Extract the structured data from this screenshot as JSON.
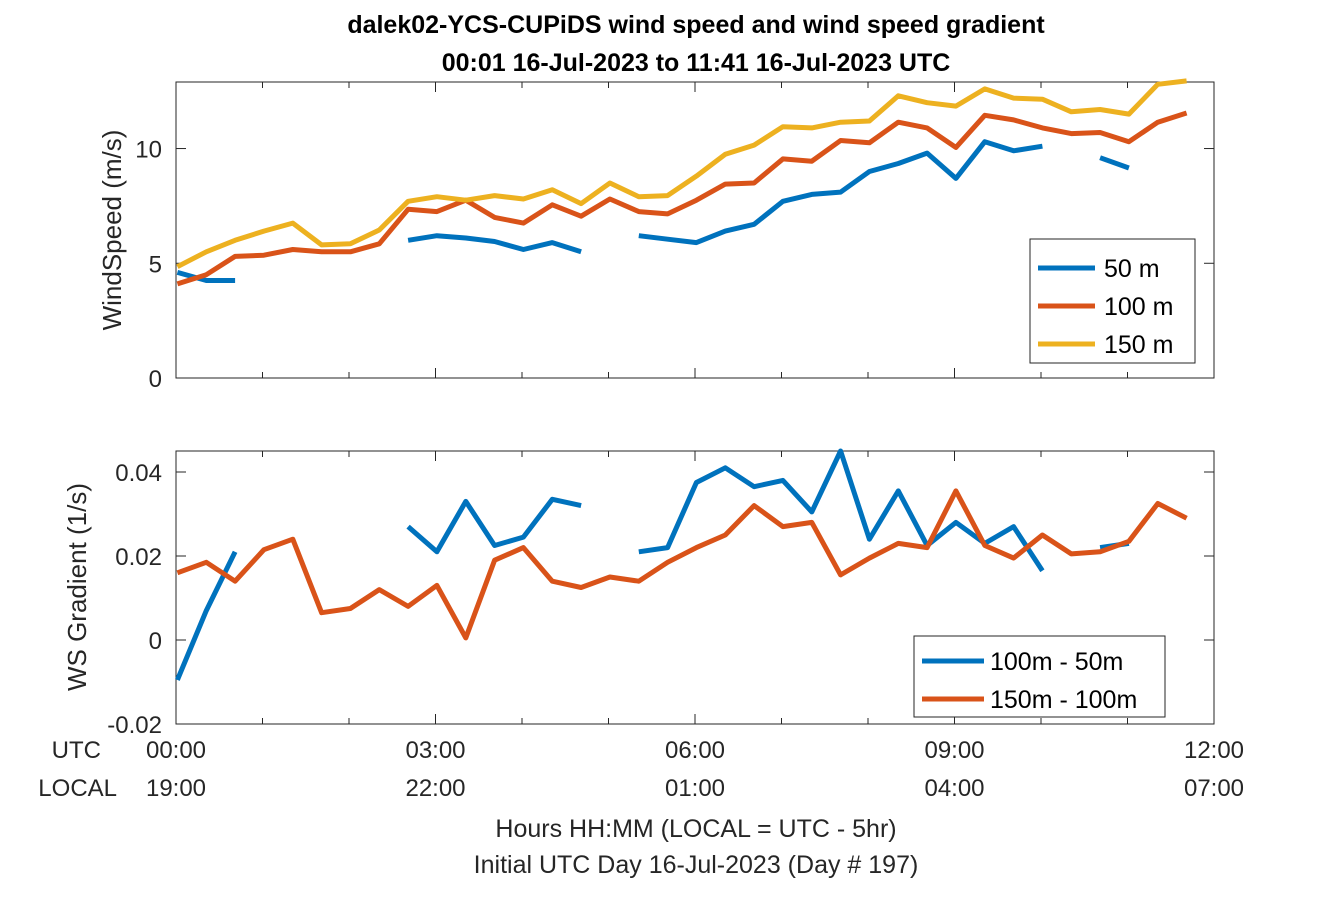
{
  "title": {
    "line1": "dalek02-YCS-CUPiDS  wind speed and wind speed gradient",
    "line2": "00:01 16-Jul-2023 to 11:41 16-Jul-2023  UTC"
  },
  "row_labels": {
    "utc": "UTC",
    "local": "LOCAL"
  },
  "xlabel_lines": [
    "Hours HH:MM  (LOCAL = UTC - 5hr)",
    "Initial UTC Day 16-Jul-2023 (Day # 197)"
  ],
  "colors": {
    "blue": "#0072BD",
    "orange": "#D95319",
    "yellow": "#EDB120"
  },
  "chart_data": [
    {
      "type": "line",
      "ylabel": "WindSpeed (m/s)",
      "xlim_hours": [
        0,
        12
      ],
      "ylim": [
        0,
        12.9
      ],
      "x_ticks": [
        {
          "hours": 0,
          "utc": "00:00",
          "local": "19:00"
        },
        {
          "hours": 3,
          "utc": "03:00",
          "local": "22:00"
        },
        {
          "hours": 6,
          "utc": "06:00",
          "local": "01:00"
        },
        {
          "hours": 9,
          "utc": "09:00",
          "local": "04:00"
        },
        {
          "hours": 12,
          "utc": "12:00",
          "local": "07:00"
        }
      ],
      "y_ticks": [
        {
          "value": 0,
          "label": "0"
        },
        {
          "value": 5,
          "label": "5"
        },
        {
          "value": 10,
          "label": "10"
        }
      ],
      "legend_position": "right",
      "series": [
        {
          "name": "50 m",
          "color": "#0072BD",
          "x": [
            "00:01",
            "00:21",
            "00:41",
            "01:01",
            "01:21",
            "01:41",
            "02:01",
            "02:21",
            "02:41",
            "03:01",
            "03:21",
            "03:41",
            "04:01",
            "04:21",
            "04:41",
            "05:01",
            "05:21",
            "05:41",
            "06:01",
            "06:21",
            "06:41",
            "07:01",
            "07:21",
            "07:41",
            "08:01",
            "08:21",
            "08:41",
            "09:01",
            "09:21",
            "09:41",
            "10:01",
            "10:21",
            "10:41",
            "11:01",
            "11:21",
            "11:41"
          ],
          "y": [
            4.6,
            4.25,
            4.25,
            null,
            null,
            null,
            null,
            null,
            6.0,
            6.2,
            6.1,
            5.95,
            5.6,
            5.9,
            5.5,
            null,
            6.2,
            6.05,
            5.9,
            6.4,
            6.7,
            7.7,
            8.0,
            8.1,
            9.0,
            9.35,
            9.8,
            8.7,
            10.3,
            9.9,
            10.1,
            null,
            9.6,
            9.15,
            null,
            null
          ]
        },
        {
          "name": "100 m",
          "color": "#D95319",
          "x": [
            "00:01",
            "00:21",
            "00:41",
            "01:01",
            "01:21",
            "01:41",
            "02:01",
            "02:21",
            "02:41",
            "03:01",
            "03:21",
            "03:41",
            "04:01",
            "04:21",
            "04:41",
            "05:01",
            "05:21",
            "05:41",
            "06:01",
            "06:21",
            "06:41",
            "07:01",
            "07:21",
            "07:41",
            "08:01",
            "08:21",
            "08:41",
            "09:01",
            "09:21",
            "09:41",
            "10:01",
            "10:21",
            "10:41",
            "11:01",
            "11:21",
            "11:41"
          ],
          "y": [
            4.1,
            4.5,
            5.3,
            5.35,
            5.6,
            5.5,
            5.5,
            5.85,
            7.35,
            7.25,
            7.75,
            7.0,
            6.75,
            7.55,
            7.05,
            7.8,
            7.25,
            7.15,
            7.75,
            8.45,
            8.5,
            9.55,
            9.45,
            10.35,
            10.25,
            11.15,
            10.9,
            10.05,
            11.45,
            11.25,
            10.9,
            10.65,
            10.7,
            10.3,
            11.15,
            11.55
          ]
        },
        {
          "name": "150 m",
          "color": "#EDB120",
          "x": [
            "00:01",
            "00:21",
            "00:41",
            "01:01",
            "01:21",
            "01:41",
            "02:01",
            "02:21",
            "02:41",
            "03:01",
            "03:21",
            "03:41",
            "04:01",
            "04:21",
            "04:41",
            "05:01",
            "05:21",
            "05:41",
            "06:01",
            "06:21",
            "06:41",
            "07:01",
            "07:21",
            "07:41",
            "08:01",
            "08:21",
            "08:41",
            "09:01",
            "09:21",
            "09:41",
            "10:01",
            "10:21",
            "10:41",
            "11:01",
            "11:21",
            "11:41"
          ],
          "y": [
            4.85,
            5.5,
            6.0,
            6.4,
            6.75,
            5.8,
            5.85,
            6.45,
            7.7,
            7.9,
            7.75,
            7.95,
            7.8,
            8.2,
            7.6,
            8.5,
            7.9,
            7.95,
            8.8,
            9.75,
            10.15,
            10.95,
            10.9,
            11.15,
            11.2,
            12.3,
            12.0,
            11.85,
            12.6,
            12.2,
            12.15,
            11.6,
            11.7,
            11.5,
            12.8,
            12.95
          ]
        }
      ]
    },
    {
      "type": "line",
      "ylabel": "WS Gradient (1/s)",
      "xlim_hours": [
        0,
        12
      ],
      "ylim": [
        -0.02,
        0.045
      ],
      "x_ticks": [
        {
          "hours": 0,
          "utc": "00:00",
          "local": "19:00"
        },
        {
          "hours": 3,
          "utc": "03:00",
          "local": "22:00"
        },
        {
          "hours": 6,
          "utc": "06:00",
          "local": "01:00"
        },
        {
          "hours": 9,
          "utc": "09:00",
          "local": "04:00"
        },
        {
          "hours": 12,
          "utc": "12:00",
          "local": "07:00"
        }
      ],
      "y_ticks": [
        {
          "value": -0.02,
          "label": "-0.02"
        },
        {
          "value": 0,
          "label": "0"
        },
        {
          "value": 0.02,
          "label": "0.02"
        },
        {
          "value": 0.04,
          "label": "0.04"
        }
      ],
      "legend_position": "bottom-right",
      "series": [
        {
          "name": "100m - 50m",
          "color": "#0072BD",
          "x": [
            "00:01",
            "00:21",
            "00:41",
            "01:01",
            "01:21",
            "01:41",
            "02:01",
            "02:21",
            "02:41",
            "03:01",
            "03:21",
            "03:41",
            "04:01",
            "04:21",
            "04:41",
            "05:01",
            "05:21",
            "05:41",
            "06:01",
            "06:21",
            "06:41",
            "07:01",
            "07:21",
            "07:41",
            "08:01",
            "08:21",
            "08:41",
            "09:01",
            "09:21",
            "09:41",
            "10:01",
            "10:21",
            "10:41",
            "11:01",
            "11:21",
            "11:41"
          ],
          "y": [
            -0.0095,
            0.007,
            0.021,
            null,
            null,
            null,
            null,
            null,
            0.027,
            0.021,
            0.033,
            0.0225,
            0.0245,
            0.0335,
            0.032,
            null,
            0.021,
            0.022,
            0.0375,
            0.041,
            0.0365,
            0.038,
            0.0305,
            0.045,
            0.024,
            0.0355,
            0.0225,
            0.028,
            0.023,
            0.027,
            0.0165,
            null,
            0.022,
            0.023,
            null,
            null
          ]
        },
        {
          "name": "150m - 100m",
          "color": "#D95319",
          "x": [
            "00:01",
            "00:21",
            "00:41",
            "01:01",
            "01:21",
            "01:41",
            "02:01",
            "02:21",
            "02:41",
            "03:01",
            "03:21",
            "03:41",
            "04:01",
            "04:21",
            "04:41",
            "05:01",
            "05:21",
            "05:41",
            "06:01",
            "06:21",
            "06:41",
            "07:01",
            "07:21",
            "07:41",
            "08:01",
            "08:21",
            "08:41",
            "09:01",
            "09:21",
            "09:41",
            "10:01",
            "10:21",
            "10:41",
            "11:01",
            "11:21",
            "11:41"
          ],
          "y": [
            0.016,
            0.0185,
            0.014,
            0.0215,
            0.024,
            0.0065,
            0.0075,
            0.012,
            0.008,
            0.013,
            0.0005,
            0.019,
            0.022,
            0.014,
            0.0125,
            0.015,
            0.014,
            0.0185,
            0.022,
            0.025,
            0.032,
            0.027,
            0.028,
            0.0155,
            0.0195,
            0.023,
            0.022,
            0.0355,
            0.0225,
            0.0195,
            0.025,
            0.0205,
            0.021,
            0.0235,
            0.0325,
            0.029
          ]
        }
      ]
    }
  ]
}
